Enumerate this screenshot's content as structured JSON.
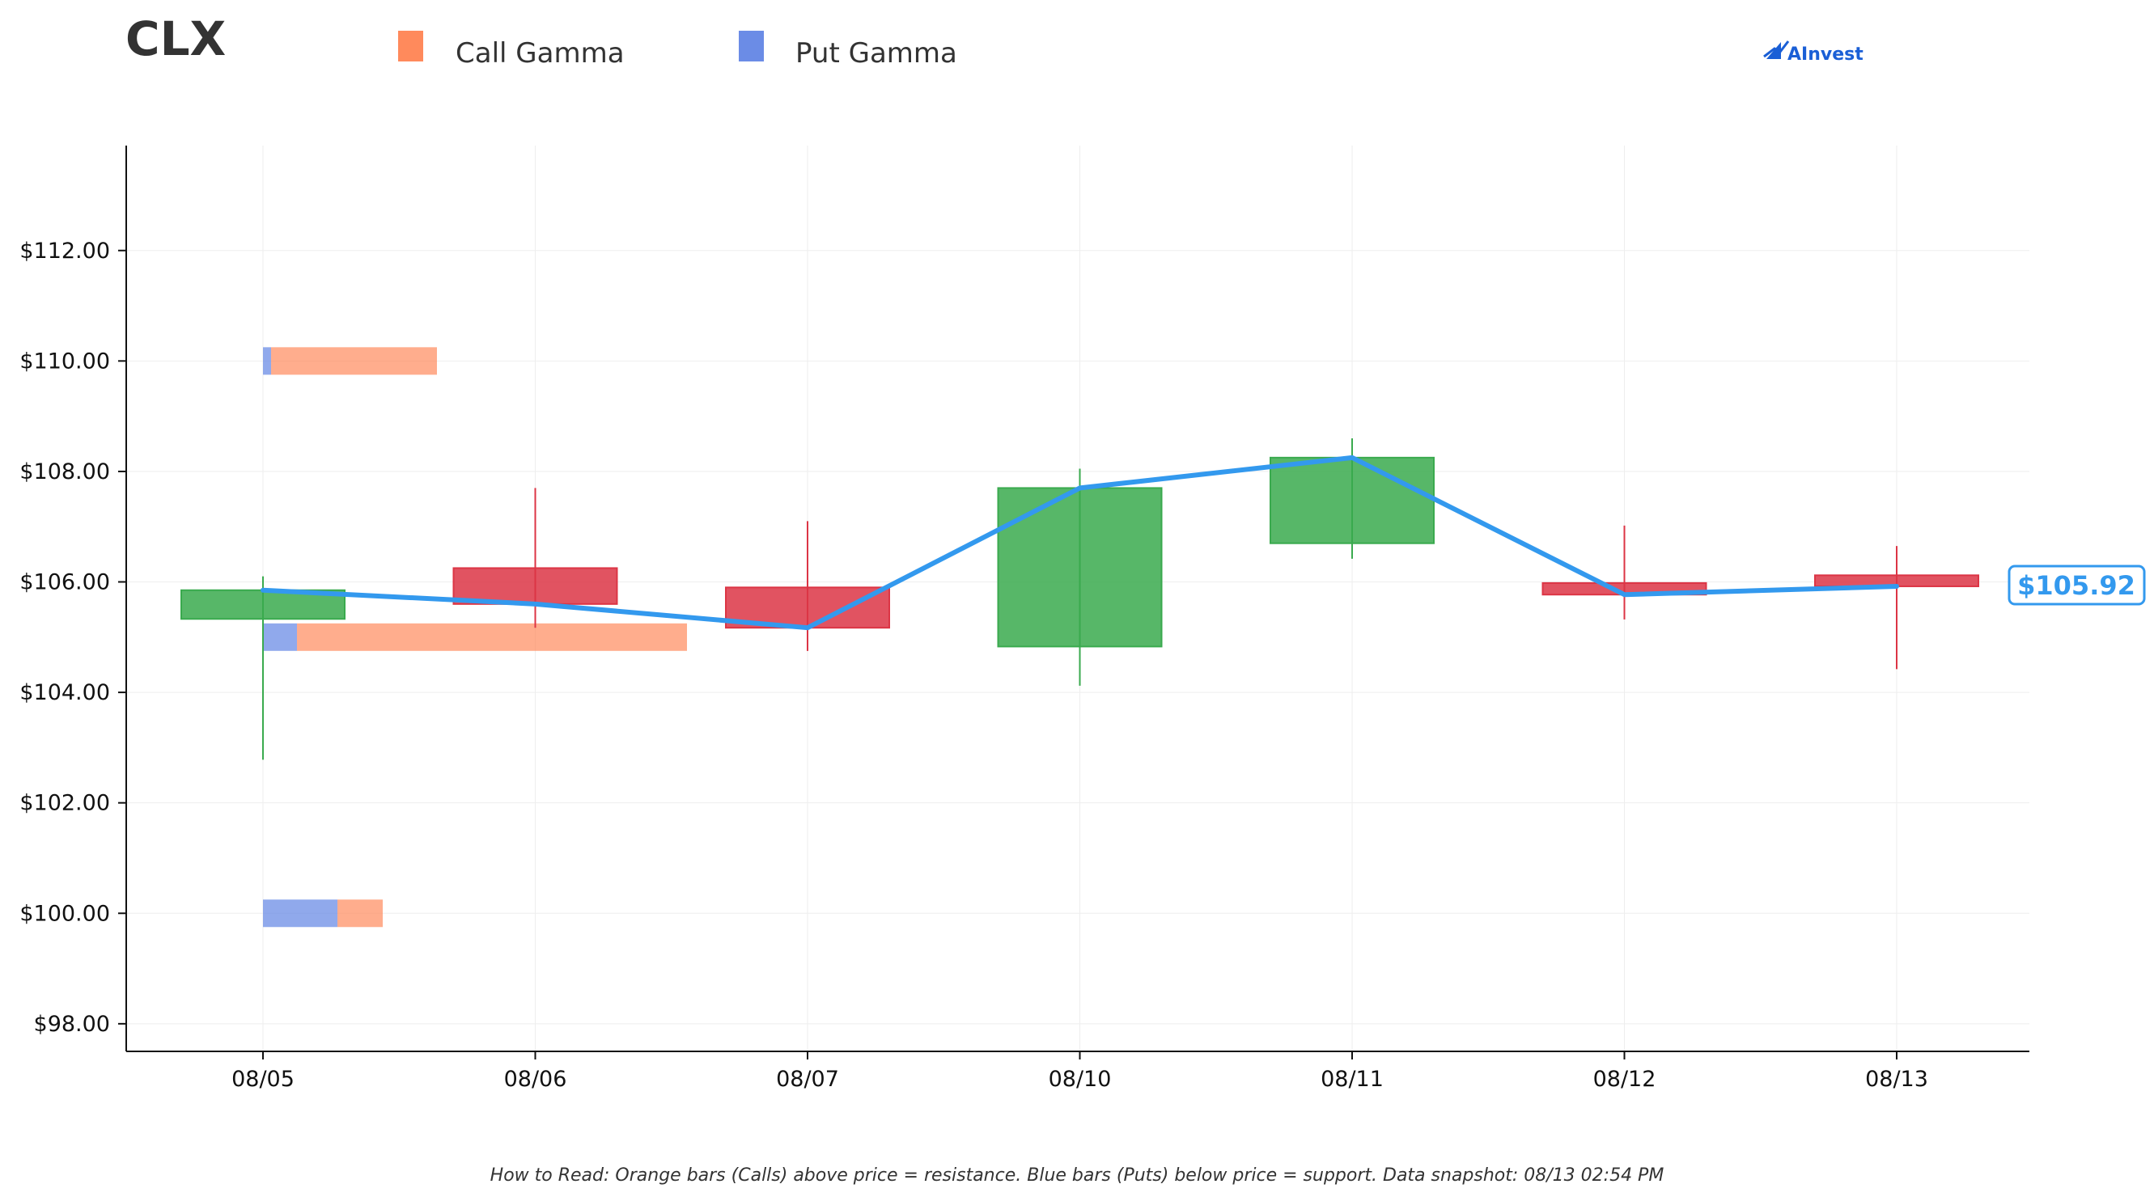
{
  "ticker": "CLX",
  "brand": "AInvest",
  "legend": [
    {
      "label": "Call Gamma",
      "color": "#ff8a5c"
    },
    {
      "label": "Put Gamma",
      "color": "#6b8ce6"
    }
  ],
  "footnote": "How to Read: Orange bars (Calls) above price = resistance. Blue bars (Puts) below price = support. Data snapshot: 08/13 02:54 PM",
  "last_price_label": "$105.92",
  "chart_data": {
    "type": "candlestick",
    "title": "CLX",
    "categories": [
      "08/05",
      "08/06",
      "08/07",
      "08/10",
      "08/11",
      "08/12",
      "08/13"
    ],
    "ylim": [
      97.5,
      113.9
    ],
    "yticks": [
      98,
      100,
      102,
      104,
      106,
      108,
      110,
      112
    ],
    "ytick_labels": [
      "$98.00",
      "$100.00",
      "$102.00",
      "$104.00",
      "$106.00",
      "$108.00",
      "$110.00",
      "$112.00"
    ],
    "grid": true,
    "legend_position": "top-left",
    "colors": {
      "up": "#3aaa4e",
      "down": "#dc3545",
      "line": "#3399ee",
      "call": "#ff8a5c",
      "put": "#6b8ce6"
    },
    "candles": [
      {
        "date": "08/05",
        "open": 105.33,
        "high": 106.1,
        "low": 102.78,
        "close": 105.85
      },
      {
        "date": "08/06",
        "open": 106.25,
        "high": 107.7,
        "low": 105.17,
        "close": 105.6
      },
      {
        "date": "08/07",
        "open": 105.9,
        "high": 107.1,
        "low": 104.75,
        "close": 105.17
      },
      {
        "date": "08/10",
        "open": 104.83,
        "high": 108.05,
        "low": 104.12,
        "close": 107.7
      },
      {
        "date": "08/11",
        "open": 106.7,
        "high": 108.6,
        "low": 106.42,
        "close": 108.25
      },
      {
        "date": "08/12",
        "open": 105.98,
        "high": 107.02,
        "low": 105.32,
        "close": 105.77
      },
      {
        "date": "08/13",
        "open": 106.12,
        "high": 106.65,
        "low": 104.42,
        "close": 105.92
      }
    ],
    "price_line": {
      "name": "Price",
      "values": [
        105.85,
        105.6,
        105.17,
        107.7,
        108.25,
        105.77,
        105.92
      ]
    },
    "gamma_levels": [
      {
        "strike": 110.0,
        "put": 0.1,
        "call": 2.05
      },
      {
        "strike": 105.0,
        "put": 0.42,
        "call": 4.82
      },
      {
        "strike": 100.0,
        "put": 0.92,
        "call": 0.56
      }
    ]
  }
}
